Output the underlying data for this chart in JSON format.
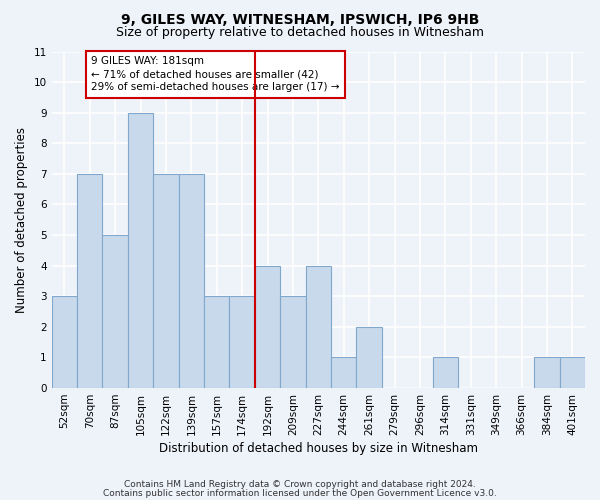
{
  "title": "9, GILES WAY, WITNESHAM, IPSWICH, IP6 9HB",
  "subtitle": "Size of property relative to detached houses in Witnesham",
  "xlabel": "Distribution of detached houses by size in Witnesham",
  "ylabel": "Number of detached properties",
  "categories": [
    "52sqm",
    "70sqm",
    "87sqm",
    "105sqm",
    "122sqm",
    "139sqm",
    "157sqm",
    "174sqm",
    "192sqm",
    "209sqm",
    "227sqm",
    "244sqm",
    "261sqm",
    "279sqm",
    "296sqm",
    "314sqm",
    "331sqm",
    "349sqm",
    "366sqm",
    "384sqm",
    "401sqm"
  ],
  "values": [
    3,
    7,
    5,
    9,
    7,
    7,
    3,
    3,
    4,
    3,
    4,
    1,
    2,
    0,
    0,
    1,
    0,
    0,
    0,
    1,
    1
  ],
  "bar_color": "#c9d9ec",
  "bar_edgecolor": "#7fa8cc",
  "vline_x": 7.5,
  "vline_color": "#cc0000",
  "annotation_text": "9 GILES WAY: 181sqm\n← 71% of detached houses are smaller (42)\n29% of semi-detached houses are larger (17) →",
  "annotation_box_color": "#cc0000",
  "ylim": [
    0,
    11
  ],
  "yticks": [
    0,
    1,
    2,
    3,
    4,
    5,
    6,
    7,
    8,
    9,
    10,
    11
  ],
  "footer_line1": "Contains HM Land Registry data © Crown copyright and database right 2024.",
  "footer_line2": "Contains public sector information licensed under the Open Government Licence v3.0.",
  "background_color": "#eef2f9",
  "grid_color": "#ffffff",
  "title_fontsize": 10,
  "subtitle_fontsize": 9,
  "label_fontsize": 8.5,
  "tick_fontsize": 7.5,
  "annotation_fontsize": 7.5,
  "footer_fontsize": 6.5
}
